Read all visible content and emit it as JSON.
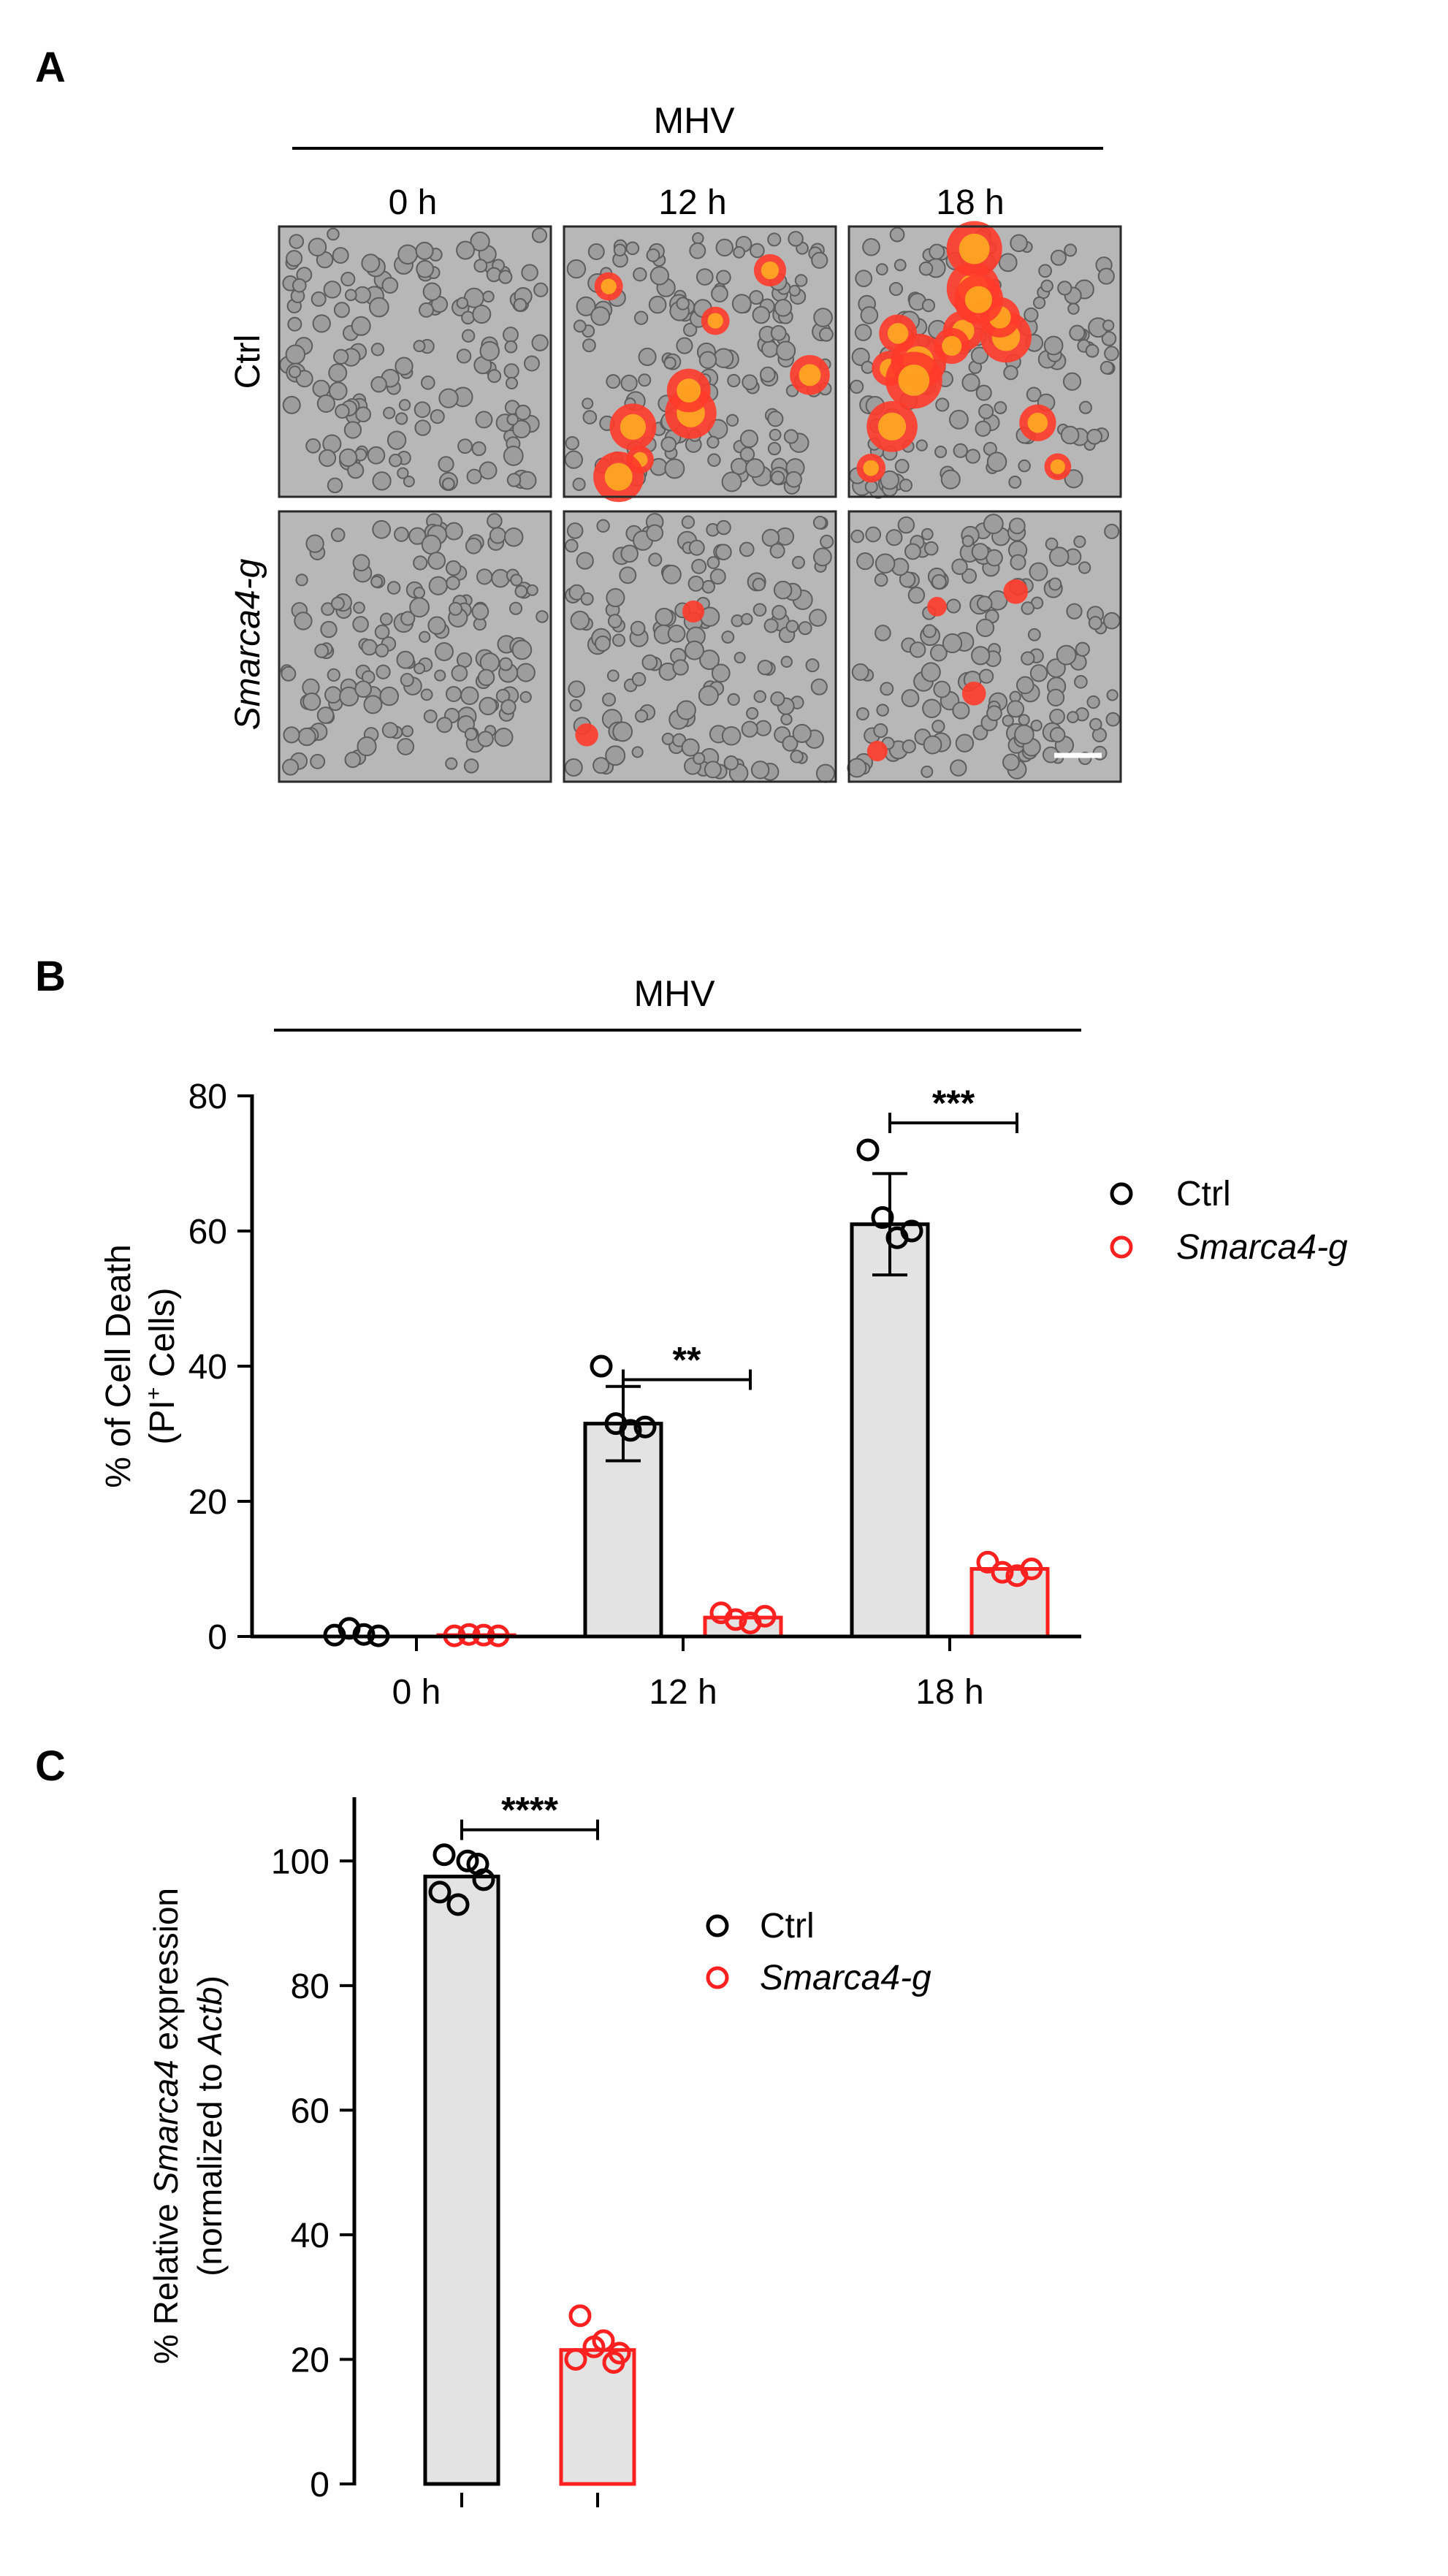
{
  "panel_a": {
    "letter": "A",
    "treatment_label": "MHV",
    "timepoints": [
      "0 h",
      "12 h",
      "18 h"
    ],
    "row_labels": [
      "Ctrl",
      "Smarca4-g"
    ],
    "pi_spot_counts": [
      [
        0,
        9,
        16
      ],
      [
        0,
        2,
        4
      ]
    ]
  },
  "panel_b": {
    "letter": "B",
    "treatment_label": "MHV"
  },
  "panel_c": {
    "letter": "C"
  },
  "chart_data": [
    {
      "type": "bar",
      "panel": "B",
      "title": "MHV",
      "ylabel_line1": "% of Cell Death",
      "ylabel_line2": [
        "(PI",
        "+",
        " Cells)"
      ],
      "xlabel": "",
      "categories": [
        "0 h",
        "12 h",
        "18 h"
      ],
      "ylim": [
        0,
        80
      ],
      "yticks": [
        0,
        20,
        40,
        60,
        80
      ],
      "series": [
        {
          "name": "Ctrl",
          "color": "#000000",
          "values": [
            0,
            31.5,
            61
          ],
          "errors": [
            0,
            5.5,
            7.5
          ],
          "points": [
            [
              0.2,
              1.2,
              0.3,
              0.1
            ],
            [
              40,
              31.5,
              30.5,
              31
            ],
            [
              72,
              62,
              59,
              60
            ]
          ]
        },
        {
          "name": "Smarca4-g",
          "color": "#ff2020",
          "values": [
            0.2,
            2.8,
            10
          ],
          "errors": [
            0,
            0,
            0
          ],
          "points": [
            [
              0.1,
              0.3,
              0.2,
              0.1
            ],
            [
              3.5,
              2.5,
              2,
              3
            ],
            [
              11,
              9.5,
              9,
              10
            ]
          ]
        }
      ],
      "significance": [
        {
          "category_index": 1,
          "label": "**",
          "y": 38
        },
        {
          "category_index": 2,
          "label": "***",
          "y": 76
        }
      ]
    },
    {
      "type": "bar",
      "panel": "C",
      "ylabel_parts": [
        "% Relative ",
        "Smarca4",
        " expression"
      ],
      "ylabel_parts2": [
        "(normalized to ",
        "Actb",
        ")"
      ],
      "xlabel": "",
      "categories": [
        "Ctrl",
        "Smarca4-g"
      ],
      "ylim": [
        0,
        110
      ],
      "yticks": [
        0,
        20,
        40,
        60,
        80,
        100
      ],
      "series": [
        {
          "name": "Ctrl",
          "color": "#000000",
          "value": 97.5,
          "points": [
            101,
            100,
            97,
            95,
            93,
            99.5
          ]
        },
        {
          "name": "Smarca4-g",
          "color": "#ff2020",
          "value": 21.5,
          "points": [
            27,
            23,
            21,
            20,
            22,
            19.5
          ]
        }
      ],
      "significance": [
        {
          "label": "****",
          "y": 105
        }
      ]
    }
  ],
  "legend": [
    {
      "label": "Ctrl",
      "color": "#000000",
      "italic": false
    },
    {
      "label": "Smarca4-g",
      "color": "#ff2020",
      "italic": true
    }
  ],
  "colors": {
    "bar_fill": "#e3e3e3",
    "ctrl": "#000000",
    "smarca4": "#ff2020"
  }
}
